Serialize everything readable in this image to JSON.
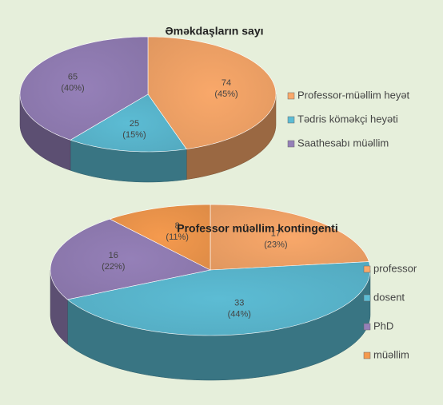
{
  "chart_data": [
    {
      "type": "pie",
      "title": "Əməkdaşların sayı",
      "categories": [
        "Professor-müəllim heyət",
        "Tədris köməkçi heyəti",
        "Saathesabı müəllim"
      ],
      "values": [
        74,
        25,
        65
      ],
      "percent_labels": [
        "(45%)",
        "(15%)",
        "(40%)"
      ],
      "colors": [
        "#f9a86a",
        "#5cbcd4",
        "#9580b8"
      ],
      "legend": "right"
    },
    {
      "type": "pie",
      "title": "Professor müəllim kontingenti",
      "categories": [
        "professor",
        "dosent",
        "PhD",
        "müəllim"
      ],
      "values": [
        17,
        33,
        16,
        8
      ],
      "percent_labels": [
        "(23%)",
        "(44%)",
        "(22%)",
        "(11%)"
      ],
      "colors": [
        "#f9a86a",
        "#5cbcd4",
        "#9580b8",
        "#f59a4e"
      ],
      "legend": "right"
    }
  ]
}
